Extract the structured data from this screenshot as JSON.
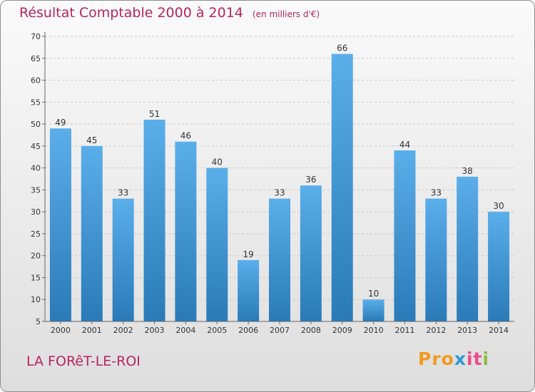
{
  "title": "Résultat Comptable 2000 à 2014",
  "subtitle": "(en milliers d'€)",
  "town": "LA FORêT-LE-ROI",
  "logo": {
    "parts": [
      "Pro",
      "x",
      "it",
      "i"
    ],
    "colors": [
      "#f39a1e",
      "#2e9ad6",
      "#e94e8c",
      "#8cbf3f"
    ]
  },
  "colors": {
    "bar_top": "#5aaeea",
    "bar_bottom": "#2a7ab8",
    "title": "#b8245c",
    "grid": "#c8c8c8",
    "axis_text": "#333333"
  },
  "chart_data": {
    "type": "bar",
    "categories": [
      "2000",
      "2001",
      "2002",
      "2003",
      "2004",
      "2005",
      "2006",
      "2007",
      "2008",
      "2009",
      "2010",
      "2011",
      "2012",
      "2013",
      "2014"
    ],
    "values": [
      49,
      45,
      33,
      51,
      46,
      40,
      19,
      33,
      36,
      66,
      10,
      44,
      33,
      38,
      30
    ],
    "ylim": [
      5,
      70
    ],
    "yticks": [
      5,
      10,
      15,
      20,
      25,
      30,
      35,
      40,
      45,
      50,
      55,
      60,
      65,
      70
    ],
    "grid": true,
    "data_labels": true
  }
}
